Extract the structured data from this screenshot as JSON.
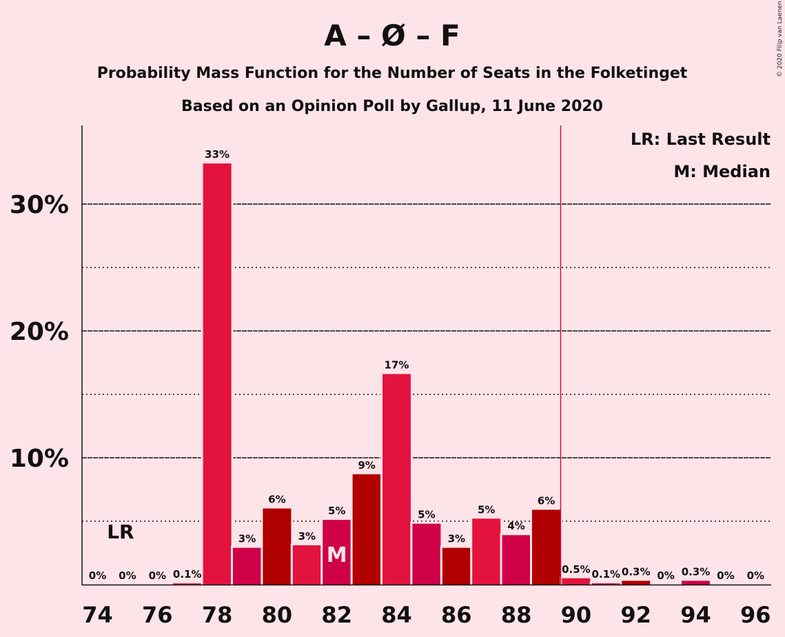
{
  "chart_data": {
    "type": "bar",
    "title": "A – Ø – F",
    "subtitle": "Probability Mass Function for the Number of Seats in the Folketinget",
    "subtitle2": "Based on an Opinion Poll by Gallup, 11 June 2020",
    "copyright": "© 2020 Filip van Laenen",
    "legend": {
      "lr": "LR: Last Result",
      "median": "M: Median",
      "position": "top-right"
    },
    "x": [
      74,
      75,
      76,
      77,
      78,
      79,
      80,
      81,
      82,
      83,
      84,
      85,
      86,
      87,
      88,
      89,
      90,
      91,
      92,
      93,
      94,
      95,
      96
    ],
    "values": [
      0,
      0,
      0,
      0.1,
      33.2,
      2.9,
      6.0,
      3.1,
      5.1,
      8.7,
      16.6,
      4.8,
      2.9,
      5.2,
      3.9,
      5.9,
      0.5,
      0.1,
      0.3,
      0,
      0.3,
      0,
      0
    ],
    "labels": [
      "0%",
      "0%",
      "0%",
      "0.1%",
      "33%",
      "3%",
      "6%",
      "3%",
      "5%",
      "9%",
      "17%",
      "5%",
      "3%",
      "5%",
      "4%",
      "6%",
      "0.5%",
      "0.1%",
      "0.3%",
      "0%",
      "0.3%",
      "0%",
      "0%"
    ],
    "colors": [
      "#e3133e",
      "#e3133e",
      "#e3133e",
      "#e3133e",
      "#e3133e",
      "#cf0047",
      "#b00000",
      "#e3133e",
      "#cf0047",
      "#b00000",
      "#e3133e",
      "#cf0047",
      "#b00000",
      "#e3133e",
      "#cf0047",
      "#b00000",
      "#e3133e",
      "#cf0047",
      "#b00000",
      "#e3133e",
      "#cf0047",
      "#b00000",
      "#e3133e"
    ],
    "xticks": [
      74,
      76,
      78,
      80,
      82,
      84,
      86,
      88,
      90,
      92,
      94,
      96
    ],
    "yticks": [
      {
        "value": 10,
        "label": "10%"
      },
      {
        "value": 20,
        "label": "20%"
      },
      {
        "value": 30,
        "label": "30%"
      }
    ],
    "minor_gridlines": [
      5,
      15,
      25
    ],
    "ylim": [
      0,
      36
    ],
    "majority_line": 89.5,
    "last_result": {
      "seat": 75,
      "label": "LR"
    },
    "median": {
      "seat": 82,
      "label": "M"
    }
  }
}
